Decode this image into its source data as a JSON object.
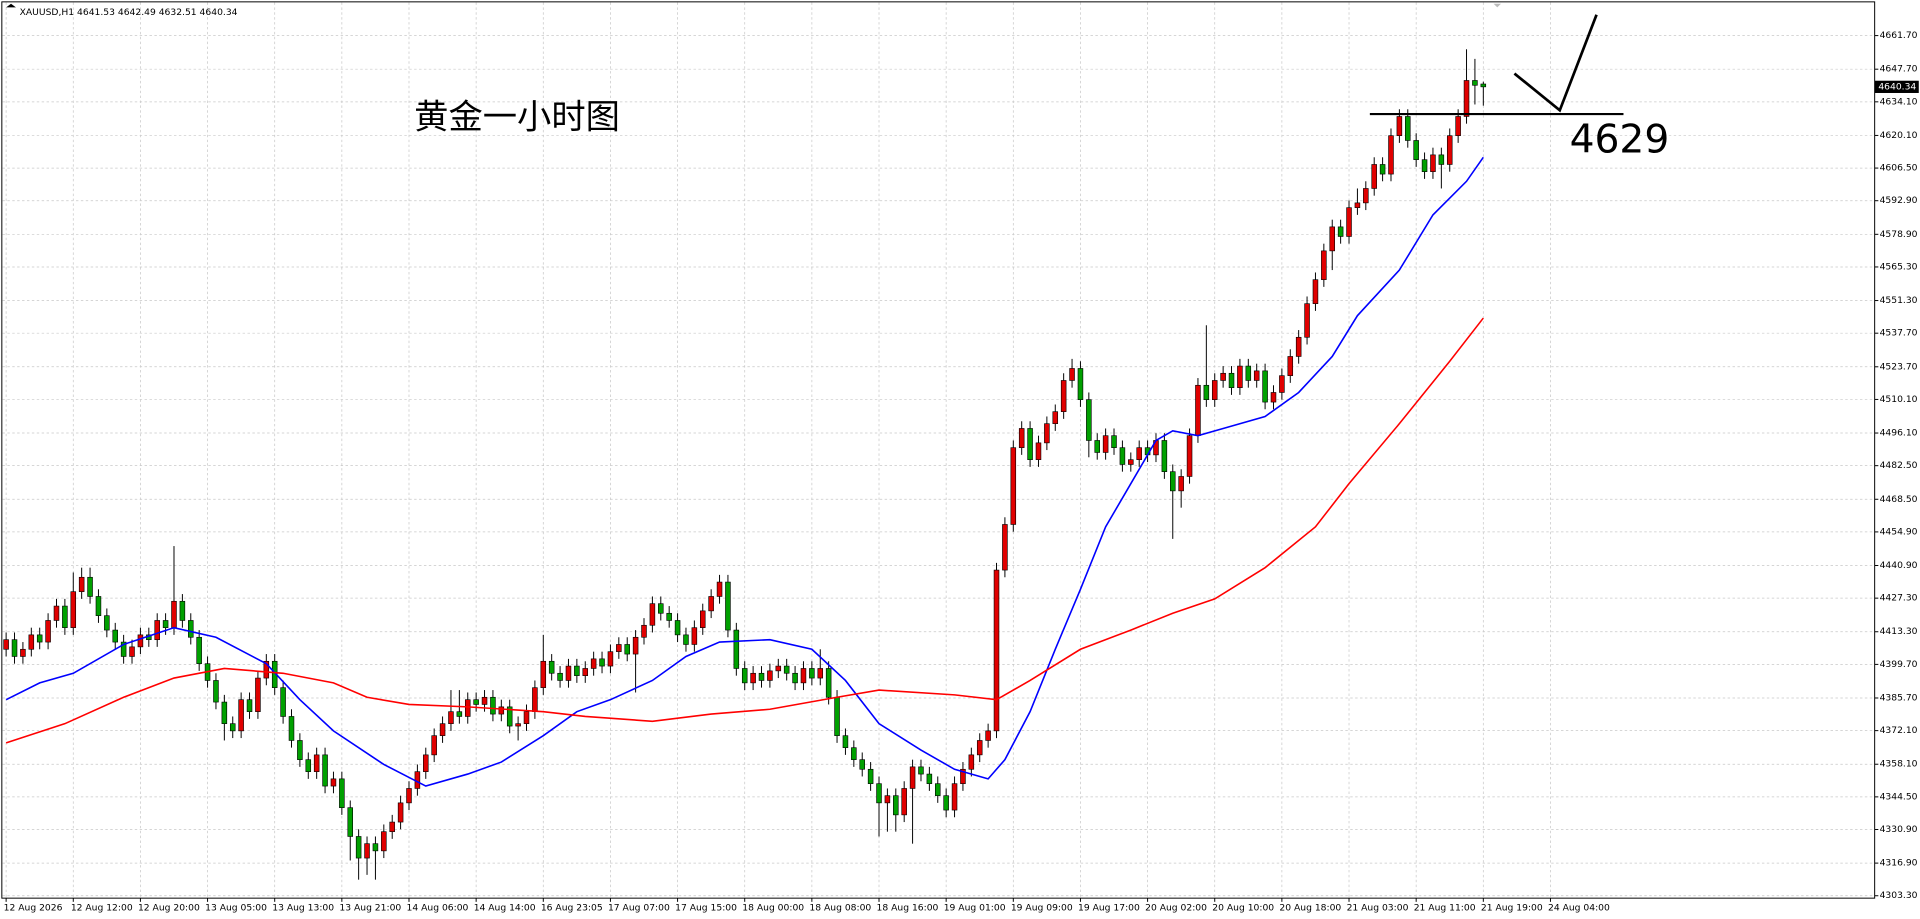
{
  "chart_data": {
    "type": "candlestick",
    "header": "XAUUSD,H1  4641.53 4642.49 4632.51 4640.34",
    "title": "黄金一小时图",
    "annotation": {
      "level": 4629
    },
    "up_color": "#e00000",
    "down_color": "#00a000",
    "ylim": [
      4302.3,
      4675.5
    ],
    "yticks": [
      {
        "value": 4661.7,
        "label": "4661.70"
      },
      {
        "value": 4647.7,
        "label": "4647.70"
      },
      {
        "value": 4634.1,
        "label": "4634.10"
      },
      {
        "value": 4620.1,
        "label": "4620.10"
      },
      {
        "value": 4606.5,
        "label": "4606.50"
      },
      {
        "value": 4592.9,
        "label": "4592.90"
      },
      {
        "value": 4578.9,
        "label": "4578.90"
      },
      {
        "value": 4565.3,
        "label": "4565.30"
      },
      {
        "value": 4551.3,
        "label": "4551.30"
      },
      {
        "value": 4537.7,
        "label": "4537.70"
      },
      {
        "value": 4523.7,
        "label": "4523.70"
      },
      {
        "value": 4510.1,
        "label": "4510.10"
      },
      {
        "value": 4496.1,
        "label": "4496.10"
      },
      {
        "value": 4482.5,
        "label": "4482.50"
      },
      {
        "value": 4468.5,
        "label": "4468.50"
      },
      {
        "value": 4454.9,
        "label": "4454.90"
      },
      {
        "value": 4440.9,
        "label": "4440.90"
      },
      {
        "value": 4427.3,
        "label": "4427.30"
      },
      {
        "value": 4413.3,
        "label": "4413.30"
      },
      {
        "value": 4399.7,
        "label": "4399.70"
      },
      {
        "value": 4385.7,
        "label": "4385.70"
      },
      {
        "value": 4372.1,
        "label": "4372.10"
      },
      {
        "value": 4358.1,
        "label": "4358.10"
      },
      {
        "value": 4344.5,
        "label": "4344.50"
      },
      {
        "value": 4330.9,
        "label": "4330.90"
      },
      {
        "value": 4316.9,
        "label": "4316.90"
      },
      {
        "value": 4303.3,
        "label": "4303.30"
      }
    ],
    "xticks": [
      {
        "value": 0,
        "label": "12 Aug 2026"
      },
      {
        "value": 8,
        "label": "12 Aug 12:00"
      },
      {
        "value": 16,
        "label": "12 Aug 20:00"
      },
      {
        "value": 24,
        "label": "13 Aug 05:00"
      },
      {
        "value": 32,
        "label": "13 Aug 13:00"
      },
      {
        "value": 40,
        "label": "13 Aug 21:00"
      },
      {
        "value": 48,
        "label": "14 Aug 06:00"
      },
      {
        "value": 56,
        "label": "14 Aug 14:00"
      },
      {
        "value": 64,
        "label": "16 Aug 23:05"
      },
      {
        "value": 72,
        "label": "17 Aug 07:00"
      },
      {
        "value": 80,
        "label": "17 Aug 15:00"
      },
      {
        "value": 88,
        "label": "18 Aug 00:00"
      },
      {
        "value": 96,
        "label": "18 Aug 08:00"
      },
      {
        "value": 104,
        "label": "18 Aug 16:00"
      },
      {
        "value": 112,
        "label": "19 Aug 01:00"
      },
      {
        "value": 120,
        "label": "19 Aug 09:00"
      },
      {
        "value": 128,
        "label": "19 Aug 17:00"
      },
      {
        "value": 136,
        "label": "20 Aug 02:00"
      },
      {
        "value": 144,
        "label": "20 Aug 10:00"
      },
      {
        "value": 152,
        "label": "20 Aug 18:00"
      },
      {
        "value": 160,
        "label": "21 Aug 03:00"
      },
      {
        "value": 168,
        "label": "21 Aug 11:00"
      },
      {
        "value": 176,
        "label": "21 Aug 19:00"
      },
      {
        "value": 184,
        "label": "24 Aug 04:00"
      }
    ],
    "candles": [
      [
        4406,
        4413,
        4403,
        4410
      ],
      [
        4410,
        4413,
        4400,
        4403
      ],
      [
        4403,
        4409,
        4400,
        4406
      ],
      [
        4406,
        4415,
        4403,
        4412
      ],
      [
        4412,
        4415,
        4406,
        4409
      ],
      [
        4409,
        4421,
        4406,
        4418
      ],
      [
        4418,
        4427,
        4415,
        4424
      ],
      [
        4424,
        4427,
        4412,
        4415
      ],
      [
        4415,
        4438,
        4412,
        4430
      ],
      [
        4430,
        4440,
        4427,
        4436
      ],
      [
        4436,
        4440,
        4425,
        4428
      ],
      [
        4428,
        4431,
        4417,
        4420
      ],
      [
        4420,
        4423,
        4411,
        4414
      ],
      [
        4414,
        4417,
        4406,
        4409
      ],
      [
        4409,
        4412,
        4400,
        4403
      ],
      [
        4403,
        4410,
        4400,
        4407
      ],
      [
        4407,
        4415,
        4404,
        4412
      ],
      [
        4412,
        4415,
        4407,
        4410
      ],
      [
        4410,
        4421,
        4407,
        4418
      ],
      [
        4418,
        4421,
        4412,
        4415
      ],
      [
        4415,
        4449,
        4412,
        4426
      ],
      [
        4426,
        4429,
        4415,
        4418
      ],
      [
        4418,
        4421,
        4408,
        4411
      ],
      [
        4411,
        4414,
        4397,
        4400
      ],
      [
        4400,
        4403,
        4390,
        4393
      ],
      [
        4393,
        4396,
        4381,
        4384
      ],
      [
        4384,
        4387,
        4368,
        4375
      ],
      [
        4375,
        4378,
        4369,
        4372
      ],
      [
        4372,
        4388,
        4369,
        4385
      ],
      [
        4385,
        4388,
        4377,
        4380
      ],
      [
        4380,
        4397,
        4377,
        4394
      ],
      [
        4394,
        4404,
        4391,
        4401
      ],
      [
        4401,
        4404,
        4387,
        4390
      ],
      [
        4390,
        4393,
        4375,
        4378
      ],
      [
        4378,
        4381,
        4365,
        4368
      ],
      [
        4368,
        4371,
        4357,
        4360
      ],
      [
        4360,
        4363,
        4352,
        4355
      ],
      [
        4355,
        4365,
        4352,
        4362
      ],
      [
        4362,
        4365,
        4346,
        4349
      ],
      [
        4349,
        4355,
        4346,
        4352
      ],
      [
        4352,
        4355,
        4337,
        4340
      ],
      [
        4340,
        4343,
        4318,
        4328
      ],
      [
        4328,
        4331,
        4310,
        4319
      ],
      [
        4319,
        4328,
        4312,
        4325
      ],
      [
        4325,
        4328,
        4310,
        4322
      ],
      [
        4322,
        4333,
        4319,
        4330
      ],
      [
        4330,
        4337,
        4327,
        4334
      ],
      [
        4334,
        4345,
        4331,
        4342
      ],
      [
        4342,
        4351,
        4339,
        4348
      ],
      [
        4348,
        4358,
        4345,
        4355
      ],
      [
        4355,
        4365,
        4352,
        4362
      ],
      [
        4362,
        4373,
        4359,
        4370
      ],
      [
        4370,
        4378,
        4367,
        4375
      ],
      [
        4375,
        4389,
        4372,
        4380
      ],
      [
        4380,
        4389,
        4375,
        4378
      ],
      [
        4378,
        4388,
        4375,
        4385
      ],
      [
        4385,
        4388,
        4380,
        4383
      ],
      [
        4383,
        4389,
        4380,
        4386
      ],
      [
        4386,
        4389,
        4376,
        4379
      ],
      [
        4379,
        4385,
        4376,
        4382
      ],
      [
        4382,
        4385,
        4371,
        4374
      ],
      [
        4374,
        4378,
        4368,
        4375
      ],
      [
        4375,
        4383,
        4372,
        4380
      ],
      [
        4380,
        4393,
        4377,
        4390
      ],
      [
        4390,
        4412,
        4387,
        4401
      ],
      [
        4401,
        4404,
        4393,
        4396
      ],
      [
        4396,
        4399,
        4390,
        4393
      ],
      [
        4393,
        4402,
        4390,
        4399
      ],
      [
        4399,
        4402,
        4392,
        4395
      ],
      [
        4395,
        4401,
        4392,
        4398
      ],
      [
        4398,
        4405,
        4395,
        4402
      ],
      [
        4402,
        4405,
        4396,
        4399
      ],
      [
        4399,
        4408,
        4396,
        4405
      ],
      [
        4405,
        4411,
        4402,
        4408
      ],
      [
        4408,
        4411,
        4401,
        4404
      ],
      [
        4404,
        4414,
        4388,
        4411
      ],
      [
        4411,
        4419,
        4408,
        4416
      ],
      [
        4416,
        4428,
        4413,
        4425
      ],
      [
        4425,
        4428,
        4418,
        4421
      ],
      [
        4421,
        4424,
        4415,
        4418
      ],
      [
        4418,
        4421,
        4409,
        4412
      ],
      [
        4412,
        4415,
        4405,
        4408
      ],
      [
        4408,
        4418,
        4405,
        4415
      ],
      [
        4415,
        4425,
        4412,
        4422
      ],
      [
        4422,
        4431,
        4419,
        4428
      ],
      [
        4428,
        4437,
        4425,
        4434
      ],
      [
        4434,
        4437,
        4411,
        4414
      ],
      [
        4414,
        4417,
        4395,
        4398
      ],
      [
        4398,
        4401,
        4389,
        4392
      ],
      [
        4392,
        4399,
        4389,
        4396
      ],
      [
        4396,
        4399,
        4390,
        4393
      ],
      [
        4393,
        4400,
        4390,
        4397
      ],
      [
        4397,
        4402,
        4394,
        4399
      ],
      [
        4399,
        4402,
        4393,
        4396
      ],
      [
        4396,
        4399,
        4389,
        4392
      ],
      [
        4392,
        4401,
        4389,
        4398
      ],
      [
        4398,
        4401,
        4391,
        4394
      ],
      [
        4394,
        4406,
        4391,
        4398
      ],
      [
        4398,
        4401,
        4383,
        4386
      ],
      [
        4386,
        4389,
        4367,
        4370
      ],
      [
        4370,
        4373,
        4362,
        4365
      ],
      [
        4365,
        4368,
        4357,
        4360
      ],
      [
        4360,
        4363,
        4353,
        4356
      ],
      [
        4356,
        4359,
        4347,
        4350
      ],
      [
        4350,
        4353,
        4328,
        4342
      ],
      [
        4342,
        4348,
        4330,
        4345
      ],
      [
        4345,
        4348,
        4330,
        4337
      ],
      [
        4337,
        4351,
        4334,
        4348
      ],
      [
        4348,
        4360,
        4325,
        4357
      ],
      [
        4357,
        4360,
        4351,
        4354
      ],
      [
        4354,
        4357,
        4347,
        4350
      ],
      [
        4350,
        4353,
        4342,
        4345
      ],
      [
        4345,
        4348,
        4336,
        4339
      ],
      [
        4339,
        4353,
        4336,
        4350
      ],
      [
        4350,
        4359,
        4347,
        4356
      ],
      [
        4356,
        4365,
        4353,
        4362
      ],
      [
        4362,
        4371,
        4359,
        4368
      ],
      [
        4368,
        4375,
        4365,
        4372
      ],
      [
        4372,
        4442,
        4369,
        4439
      ],
      [
        4439,
        4461,
        4436,
        4458
      ],
      [
        4458,
        4493,
        4455,
        4490
      ],
      [
        4490,
        4501,
        4487,
        4498
      ],
      [
        4498,
        4501,
        4482,
        4485
      ],
      [
        4485,
        4495,
        4482,
        4492
      ],
      [
        4492,
        4503,
        4489,
        4500
      ],
      [
        4500,
        4508,
        4497,
        4505
      ],
      [
        4505,
        4521,
        4502,
        4518
      ],
      [
        4518,
        4527,
        4515,
        4523
      ],
      [
        4523,
        4526,
        4507,
        4510
      ],
      [
        4510,
        4513,
        4486,
        4493
      ],
      [
        4493,
        4496,
        4485,
        4488
      ],
      [
        4488,
        4498,
        4485,
        4495
      ],
      [
        4495,
        4498,
        4487,
        4490
      ],
      [
        4490,
        4493,
        4480,
        4483
      ],
      [
        4483,
        4488,
        4480,
        4485
      ],
      [
        4485,
        4493,
        4482,
        4490
      ],
      [
        4490,
        4493,
        4484,
        4487
      ],
      [
        4487,
        4496,
        4484,
        4493
      ],
      [
        4493,
        4496,
        4477,
        4480
      ],
      [
        4480,
        4483,
        4452,
        4472
      ],
      [
        4472,
        4481,
        4465,
        4478
      ],
      [
        4478,
        4498,
        4475,
        4495
      ],
      [
        4495,
        4519,
        4492,
        4516
      ],
      [
        4516,
        4541,
        4507,
        4510
      ],
      [
        4510,
        4521,
        4507,
        4518
      ],
      [
        4518,
        4524,
        4515,
        4521
      ],
      [
        4521,
        4524,
        4512,
        4515
      ],
      [
        4515,
        4527,
        4512,
        4524
      ],
      [
        4524,
        4527,
        4515,
        4518
      ],
      [
        4518,
        4525,
        4515,
        4522
      ],
      [
        4522,
        4525,
        4506,
        4509
      ],
      [
        4509,
        4516,
        4506,
        4513
      ],
      [
        4513,
        4523,
        4510,
        4520
      ],
      [
        4520,
        4531,
        4517,
        4528
      ],
      [
        4528,
        4539,
        4525,
        4536
      ],
      [
        4536,
        4553,
        4533,
        4550
      ],
      [
        4550,
        4563,
        4547,
        4560
      ],
      [
        4560,
        4575,
        4557,
        4572
      ],
      [
        4572,
        4585,
        4564,
        4582
      ],
      [
        4582,
        4585,
        4575,
        4578
      ],
      [
        4578,
        4593,
        4575,
        4590
      ],
      [
        4590,
        4598,
        4587,
        4592
      ],
      [
        4592,
        4601,
        4589,
        4598
      ],
      [
        4598,
        4611,
        4595,
        4608
      ],
      [
        4608,
        4611,
        4601,
        4604
      ],
      [
        4604,
        4623,
        4601,
        4620
      ],
      [
        4620,
        4631,
        4617,
        4628
      ],
      [
        4628,
        4631,
        4615,
        4618
      ],
      [
        4618,
        4621,
        4607,
        4610
      ],
      [
        4610,
        4613,
        4602,
        4605
      ],
      [
        4605,
        4615,
        4602,
        4612
      ],
      [
        4612,
        4615,
        4598,
        4608
      ],
      [
        4608,
        4623,
        4605,
        4620
      ],
      [
        4620,
        4631,
        4617,
        4628
      ],
      [
        4628,
        4656,
        4625,
        4643
      ],
      [
        4643,
        4652,
        4633,
        4641
      ],
      [
        4641.53,
        4642.49,
        4632.51,
        4640.34
      ]
    ],
    "series": [
      {
        "color": "#0000ff",
        "x": [
          0,
          4,
          8,
          14,
          20,
          25,
          31,
          35,
          39,
          45,
          50,
          55,
          59,
          64,
          68,
          72,
          77,
          81,
          85,
          91,
          96,
          100,
          104,
          109,
          113,
          117,
          119,
          122,
          125,
          128,
          131,
          134,
          137,
          139,
          142,
          145,
          150,
          154,
          158,
          161,
          166,
          170,
          174,
          176
        ],
        "values": [
          4385,
          4392,
          4396,
          4408,
          4415,
          4411,
          4400,
          4385,
          4372,
          4358,
          4349,
          4354,
          4359,
          4370,
          4380,
          4385,
          4393,
          4403,
          4409,
          4410,
          4406,
          4393,
          4375,
          4364,
          4356,
          4352,
          4360,
          4380,
          4406,
          4431,
          4457,
          4475,
          4493,
          4497,
          4495,
          4498,
          4503,
          4513,
          4528,
          4545,
          4564,
          4587,
          4601,
          4611
        ]
      },
      {
        "color": "#ff0000",
        "x": [
          0,
          7,
          14,
          20,
          26,
          33,
          39,
          43,
          48,
          55,
          64,
          69,
          77,
          84,
          91,
          99,
          104,
          113,
          118,
          122,
          128,
          134,
          139,
          144,
          150,
          156,
          160,
          166,
          172,
          176
        ],
        "values": [
          4367,
          4375,
          4386,
          4394,
          4398,
          4396,
          4392,
          4386,
          4383,
          4382,
          4380,
          4378,
          4376,
          4379,
          4381,
          4386,
          4389,
          4387,
          4385,
          4393,
          4406,
          4414,
          4421,
          4427,
          4440,
          4457,
          4475,
          4500,
          4526,
          4544
        ]
      }
    ]
  }
}
